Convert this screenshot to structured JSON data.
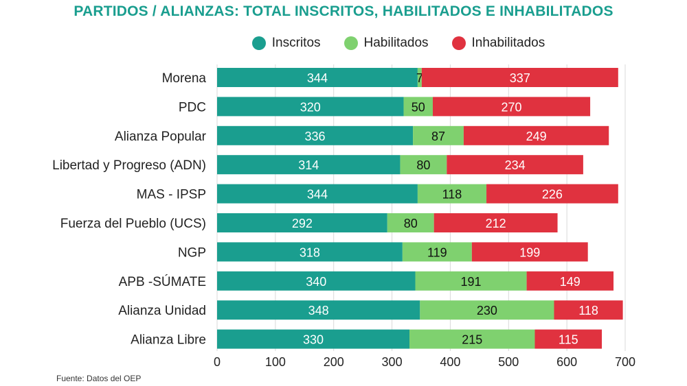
{
  "chart_data": {
    "type": "bar",
    "orientation": "horizontal",
    "stacked": true,
    "title": "PARTIDOS / ALIANZAS: TOTAL INSCRITOS, HABILITADOS E INHABILITADOS",
    "categories": [
      "Morena",
      "PDC",
      "Alianza Popular",
      "Libertad y Progreso (ADN)",
      "MAS - IPSP",
      "Fuerza del Pueblo (UCS)",
      "NGP",
      "APB -SÚMATE",
      "Alianza Unidad",
      "Alianza Libre"
    ],
    "series": [
      {
        "name": "Inscritos",
        "color": "#1a9e8f",
        "values": [
          344,
          320,
          336,
          314,
          344,
          292,
          318,
          340,
          348,
          330
        ]
      },
      {
        "name": "Habilitados",
        "color": "#7fd16f",
        "values": [
          7,
          50,
          87,
          80,
          118,
          80,
          119,
          191,
          230,
          215
        ]
      },
      {
        "name": "Inhabilitados",
        "color": "#e0323f",
        "values": [
          337,
          270,
          249,
          234,
          226,
          212,
          199,
          149,
          118,
          115
        ]
      }
    ],
    "xlim": [
      0,
      700
    ],
    "xticks": [
      0,
      100,
      200,
      300,
      400,
      500,
      600,
      700
    ],
    "xlabel": "",
    "ylabel": "",
    "grid": true,
    "legend_position": "top"
  },
  "source_note": "Fuente: Datos del OEP"
}
